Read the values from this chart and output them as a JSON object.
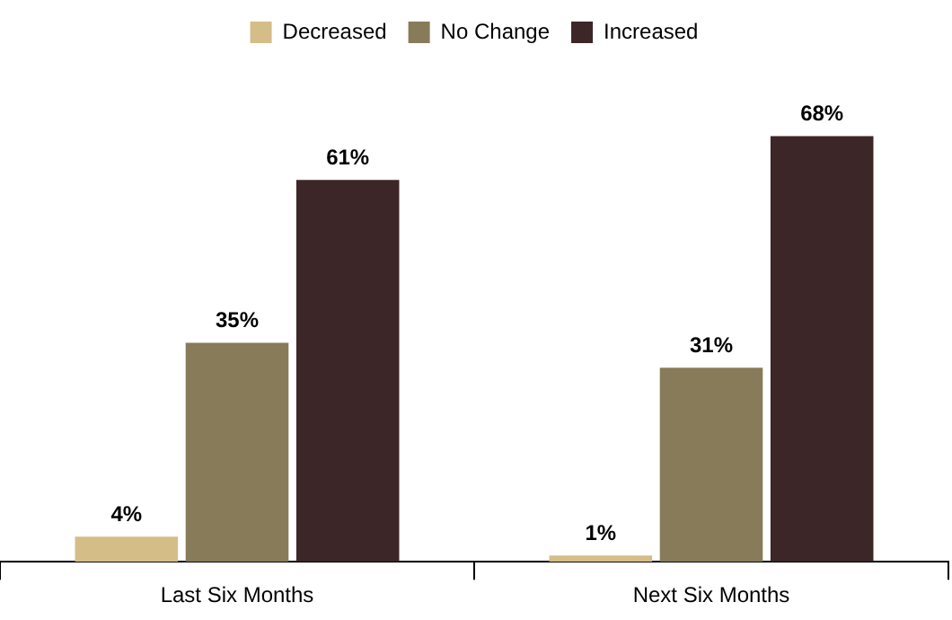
{
  "chart_data": {
    "type": "bar",
    "categories": [
      "Last Six Months",
      "Next Six Months"
    ],
    "series": [
      {
        "name": "Decreased",
        "color": "#d5bd88",
        "values": [
          4,
          1
        ],
        "value_labels": [
          "4%",
          "1%"
        ]
      },
      {
        "name": "No Change",
        "color": "#877b59",
        "values": [
          35,
          31
        ],
        "value_labels": [
          "35%",
          "31%"
        ]
      },
      {
        "name": "Increased",
        "color": "#3c2627",
        "values": [
          61,
          68
        ],
        "value_labels": [
          "61%",
          "68%"
        ]
      }
    ],
    "grid": false,
    "legend": "top"
  }
}
